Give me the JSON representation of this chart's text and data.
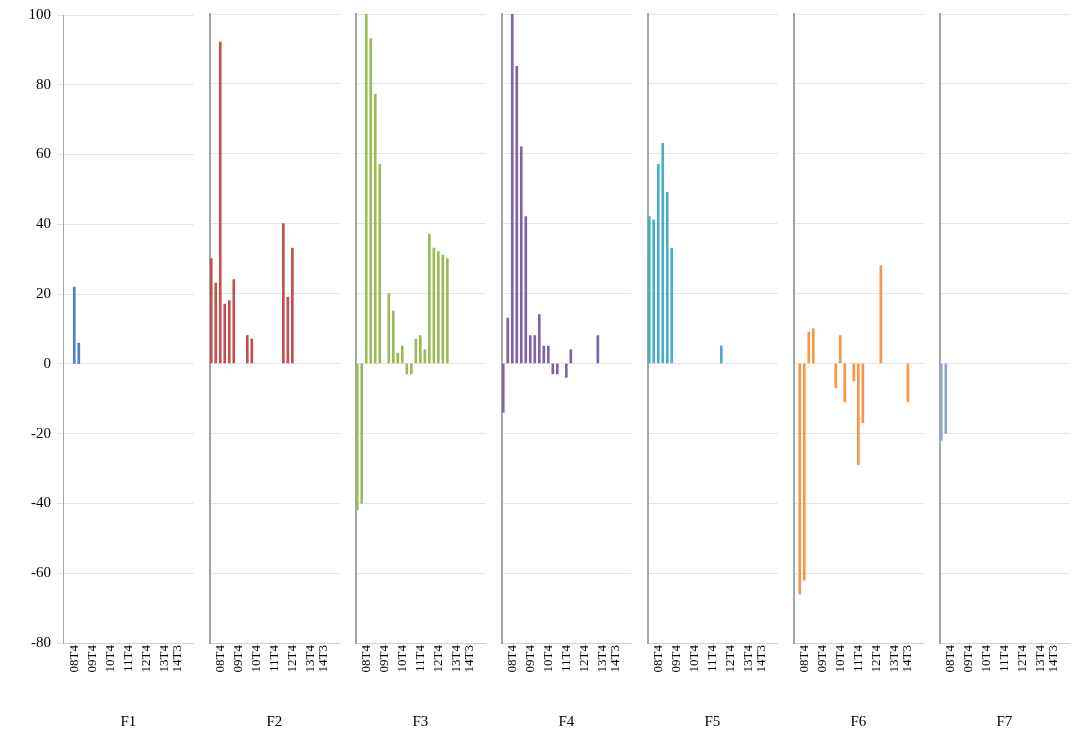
{
  "chart_data": [
    {
      "type": "bar",
      "xlabel": "F1",
      "categories": [
        null,
        null,
        "08T4",
        null,
        null,
        null,
        "09T4",
        null,
        null,
        null,
        "10T4",
        null,
        null,
        null,
        "11T4",
        null,
        null,
        null,
        "12T4",
        null,
        null,
        null,
        "13T4",
        null,
        null,
        "14T3",
        null,
        null,
        null
      ],
      "series": [
        {
          "color": "#4f81bd",
          "values": [
            null,
            null,
            22,
            6,
            null,
            null,
            null,
            null,
            null,
            null,
            null,
            null,
            null,
            null,
            null,
            null,
            null,
            null,
            null,
            null,
            null,
            null,
            null,
            null,
            null,
            null,
            null,
            null,
            null
          ]
        }
      ],
      "ylim": [
        -80,
        100
      ],
      "yticks": [
        -80,
        -60,
        -40,
        -20,
        0,
        20,
        40,
        60,
        80,
        100
      ],
      "grid": "y"
    },
    {
      "type": "bar",
      "xlabel": "F2",
      "categories": [
        null,
        null,
        "08T4",
        null,
        null,
        null,
        "09T4",
        null,
        null,
        null,
        "10T4",
        null,
        null,
        null,
        "11T4",
        null,
        null,
        null,
        "12T4",
        null,
        null,
        null,
        "13T4",
        null,
        null,
        "14T3",
        null,
        null,
        null
      ],
      "series": [
        {
          "color": "#c0504d",
          "values": [
            30,
            23,
            92,
            17,
            18,
            24,
            null,
            null,
            8,
            7,
            null,
            null,
            null,
            null,
            null,
            null,
            40,
            19,
            33,
            null,
            null,
            null,
            null,
            null,
            null,
            null,
            null,
            null,
            null
          ]
        }
      ],
      "ylim": [
        -80,
        100
      ],
      "yticks": [
        -80,
        -60,
        -40,
        -20,
        0,
        20,
        40,
        60,
        80,
        100
      ],
      "grid": "y",
      "tick_labels": "x"
    },
    {
      "type": "bar",
      "xlabel": "F3",
      "categories": [
        null,
        null,
        "08T4",
        null,
        null,
        null,
        "09T4",
        null,
        null,
        null,
        "10T4",
        null,
        null,
        null,
        "11T4",
        null,
        null,
        null,
        "12T4",
        null,
        null,
        null,
        "13T4",
        null,
        null,
        "14T3",
        null,
        null,
        null
      ],
      "series": [
        {
          "color": "#9bbb59",
          "values": [
            -42,
            -40,
            100,
            93,
            77,
            57,
            null,
            20,
            15,
            3,
            5,
            -3,
            -3,
            7,
            8,
            4,
            37,
            33,
            32,
            31,
            30,
            null,
            null,
            null,
            null,
            null,
            null,
            null,
            null
          ]
        }
      ],
      "ylim": [
        -80,
        100
      ],
      "yticks": [
        -80,
        -60,
        -40,
        -20,
        0,
        20,
        40,
        60,
        80,
        100
      ],
      "grid": "y",
      "tick_labels": "x"
    },
    {
      "type": "bar",
      "xlabel": "F4",
      "categories": [
        null,
        null,
        "08T4",
        null,
        null,
        null,
        "09T4",
        null,
        null,
        null,
        "10T4",
        null,
        null,
        null,
        "11T4",
        null,
        null,
        null,
        "12T4",
        null,
        null,
        null,
        "13T4",
        null,
        null,
        "14T3",
        null,
        null,
        null
      ],
      "series": [
        {
          "color": "#8064a2",
          "values": [
            -14,
            13,
            100,
            85,
            62,
            42,
            8,
            8,
            14,
            5,
            5,
            -3,
            -3,
            null,
            -4,
            4,
            null,
            null,
            null,
            null,
            null,
            8,
            null,
            null,
            null,
            null,
            null,
            null,
            null
          ]
        }
      ],
      "ylim": [
        -80,
        100
      ],
      "yticks": [
        -80,
        -60,
        -40,
        -20,
        0,
        20,
        40,
        60,
        80,
        100
      ],
      "grid": "y",
      "tick_labels": "x"
    },
    {
      "type": "bar",
      "xlabel": "F5",
      "categories": [
        null,
        null,
        "08T4",
        null,
        null,
        null,
        "09T4",
        null,
        null,
        null,
        "10T4",
        null,
        null,
        null,
        "11T4",
        null,
        null,
        null,
        "12T4",
        null,
        null,
        null,
        "13T4",
        null,
        null,
        "14T3",
        null,
        null,
        null
      ],
      "series": [
        {
          "color": "#4bacc6",
          "values": [
            42,
            41,
            57,
            63,
            49,
            33,
            null,
            null,
            null,
            null,
            null,
            null,
            null,
            null,
            null,
            null,
            5,
            null,
            null,
            null,
            null,
            null,
            null,
            null,
            null,
            null,
            null,
            null,
            null
          ]
        }
      ],
      "ylim": [
        -80,
        100
      ],
      "yticks": [
        -80,
        -60,
        -40,
        -20,
        0,
        20,
        40,
        60,
        80,
        100
      ],
      "grid": "y",
      "tick_labels": "x"
    },
    {
      "type": "bar",
      "xlabel": "F6",
      "categories": [
        null,
        null,
        "08T4",
        null,
        null,
        null,
        "09T4",
        null,
        null,
        null,
        "10T4",
        null,
        null,
        null,
        "11T4",
        null,
        null,
        null,
        "12T4",
        null,
        null,
        null,
        "13T4",
        null,
        null,
        "14T3",
        null,
        null,
        null
      ],
      "series": [
        {
          "color": "#f79646",
          "values": [
            null,
            -66,
            -62,
            9,
            10,
            null,
            null,
            null,
            null,
            -7,
            8,
            -11,
            null,
            -5,
            -29,
            -17,
            null,
            null,
            null,
            28,
            null,
            null,
            null,
            null,
            null,
            -11,
            null,
            null,
            null
          ]
        }
      ],
      "ylim": [
        -80,
        100
      ],
      "yticks": [
        -80,
        -60,
        -40,
        -20,
        0,
        20,
        40,
        60,
        80,
        100
      ],
      "grid": "y",
      "tick_labels": "x"
    },
    {
      "type": "bar",
      "xlabel": "F7",
      "categories": [
        null,
        null,
        "08T4",
        null,
        null,
        null,
        "09T4",
        null,
        null,
        null,
        "10T4",
        null,
        null,
        null,
        "11T4",
        null,
        null,
        null,
        "12T4",
        null,
        null,
        null,
        "13T4",
        null,
        null,
        "14T3",
        null,
        null,
        null
      ],
      "series": [
        {
          "color": "#8ea4d2",
          "values": [
            -22,
            -20,
            null,
            null,
            null,
            null,
            null,
            null,
            null,
            null,
            null,
            null,
            null,
            null,
            null,
            null,
            null,
            null,
            null,
            null,
            null,
            null,
            null,
            null,
            null,
            null,
            null,
            null,
            null
          ]
        }
      ],
      "ylim": [
        -80,
        100
      ],
      "yticks": [
        -80,
        -60,
        -40,
        -20,
        0,
        20,
        40,
        60,
        80,
        100
      ],
      "grid": "y",
      "tick_labels": "x"
    }
  ]
}
